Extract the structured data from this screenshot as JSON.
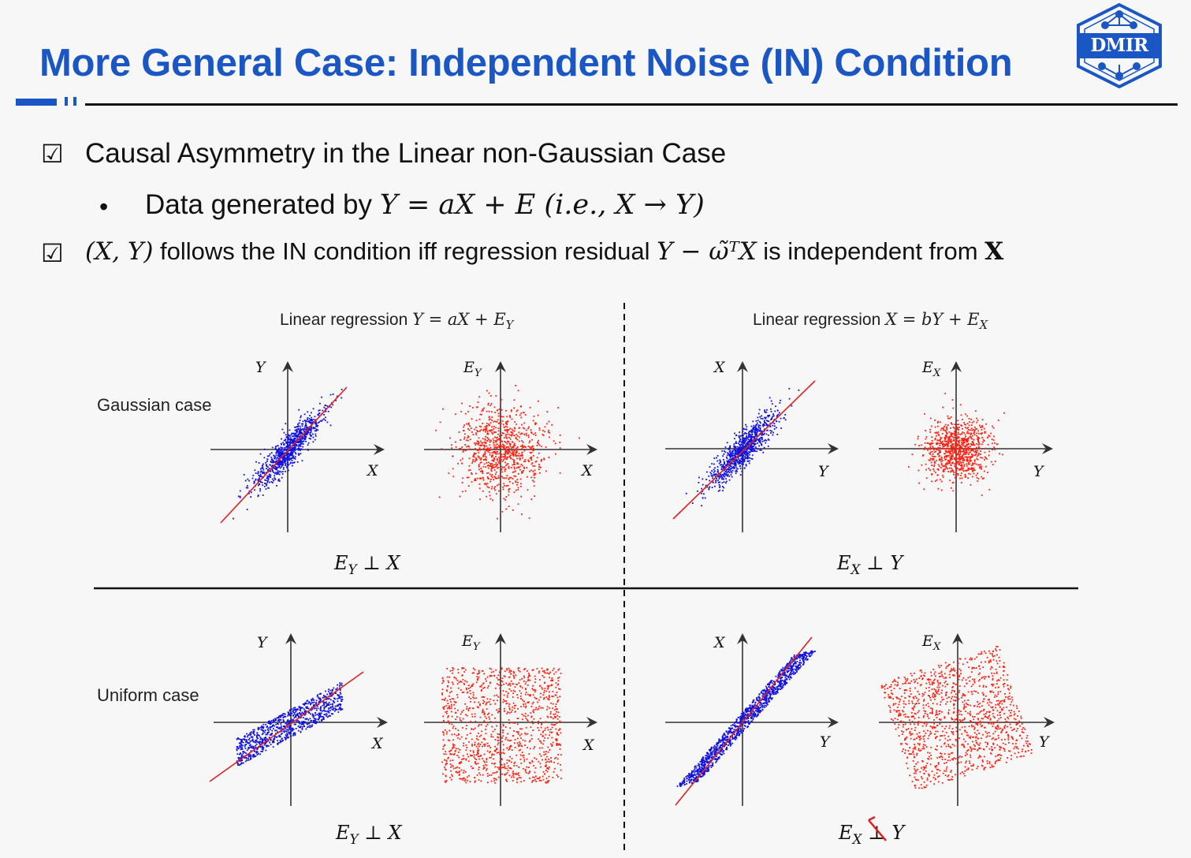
{
  "header": {
    "title": "More General Case: Independent Noise (IN) Condition",
    "logo_text": "DMIR",
    "accent_color": "#1b57c4"
  },
  "bullets": {
    "b1": "Causal Asymmetry in the Linear non-Gaussian Case",
    "b1_sub_text": "Data generated by ",
    "b1_sub_math": "Y = aX + E (i.e., X → Y)",
    "b2_pre_math": "(X, Y)",
    "b2_text": " follows the IN condition iff regression residual ",
    "b2_math": "Y − ω̃ᵀX",
    "b2_text2": " is independent from ",
    "b2_math2": "X"
  },
  "figure": {
    "col_titles": {
      "left_text": "Linear regression ",
      "left_math": "Y = aX + E",
      "left_sub": "Y",
      "right_text": "Linear regression ",
      "right_math": "X = bY + E",
      "right_sub": "X"
    },
    "row_labels": {
      "gaussian": "Gaussian case",
      "uniform": "Uniform case"
    },
    "axis_labels": {
      "Y": "Y",
      "X": "X",
      "E": "E",
      "EY_sub": "Y",
      "EX_sub": "X"
    },
    "independence": {
      "g_left": "⊥ X",
      "g_right": "⊥ Y",
      "u_left": "⊥ X",
      "u_right": "⊥ Y"
    },
    "colors": {
      "scatter_main": "#1010e0",
      "residual": "#ff2010",
      "fit_line": "#e02020"
    }
  },
  "chart_data": [
    {
      "type": "scatter",
      "panel": "gaussian-Y-vs-X",
      "distribution": "gaussian",
      "x_label": "X",
      "y_label": "Y",
      "color": "#1010e0",
      "regression_line": true
    },
    {
      "type": "scatter",
      "panel": "gaussian-EY-vs-X",
      "distribution": "gaussian",
      "x_label": "X",
      "y_label": "EY",
      "color": "#ff2010",
      "regression_line": false
    },
    {
      "type": "scatter",
      "panel": "gaussian-X-vs-Y",
      "distribution": "gaussian",
      "x_label": "Y",
      "y_label": "X",
      "color": "#1010e0",
      "regression_line": true
    },
    {
      "type": "scatter",
      "panel": "gaussian-EX-vs-Y",
      "distribution": "gaussian",
      "x_label": "Y",
      "y_label": "EX",
      "color": "#ff2010",
      "regression_line": false
    },
    {
      "type": "scatter",
      "panel": "uniform-Y-vs-X",
      "distribution": "uniform",
      "x_label": "X",
      "y_label": "Y",
      "color": "#1010e0",
      "regression_line": true
    },
    {
      "type": "scatter",
      "panel": "uniform-EY-vs-X",
      "distribution": "uniform",
      "x_label": "X",
      "y_label": "EY",
      "color": "#ff2010",
      "regression_line": false
    },
    {
      "type": "scatter",
      "panel": "uniform-X-vs-Y",
      "distribution": "uniform",
      "x_label": "Y",
      "y_label": "X",
      "color": "#1010e0",
      "regression_line": true
    },
    {
      "type": "scatter",
      "panel": "uniform-EX-vs-Y",
      "distribution": "uniform",
      "x_label": "Y",
      "y_label": "EX",
      "color": "#ff2010",
      "regression_line": false
    }
  ]
}
